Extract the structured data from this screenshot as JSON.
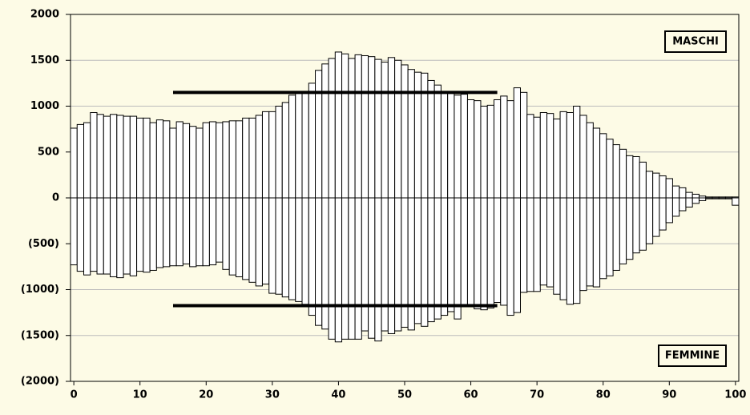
{
  "chart_data": {
    "type": "bar",
    "categories": [
      0,
      1,
      2,
      3,
      4,
      5,
      6,
      7,
      8,
      9,
      10,
      11,
      12,
      13,
      14,
      15,
      16,
      17,
      18,
      19,
      20,
      21,
      22,
      23,
      24,
      25,
      26,
      27,
      28,
      29,
      30,
      31,
      32,
      33,
      34,
      35,
      36,
      37,
      38,
      39,
      40,
      41,
      42,
      43,
      44,
      45,
      46,
      47,
      48,
      49,
      50,
      51,
      52,
      53,
      54,
      55,
      56,
      57,
      58,
      59,
      60,
      61,
      62,
      63,
      64,
      65,
      66,
      67,
      68,
      69,
      70,
      71,
      72,
      73,
      74,
      75,
      76,
      77,
      78,
      79,
      80,
      81,
      82,
      83,
      84,
      85,
      86,
      87,
      88,
      89,
      90,
      91,
      92,
      93,
      94,
      95,
      96,
      97,
      98,
      99,
      100
    ],
    "series": [
      {
        "name": "MASCHI",
        "color": "#ffffff",
        "values": [
          760,
          800,
          820,
          930,
          910,
          890,
          910,
          900,
          890,
          890,
          870,
          870,
          820,
          850,
          840,
          760,
          830,
          810,
          780,
          760,
          820,
          830,
          820,
          830,
          840,
          840,
          870,
          870,
          900,
          940,
          940,
          1000,
          1040,
          1120,
          1150,
          1160,
          1250,
          1390,
          1460,
          1520,
          1590,
          1570,
          1520,
          1560,
          1550,
          1540,
          1510,
          1480,
          1530,
          1500,
          1450,
          1400,
          1370,
          1360,
          1280,
          1230,
          1160,
          1150,
          1120,
          1130,
          1070,
          1060,
          1000,
          1010,
          1070,
          1110,
          1060,
          1200,
          1150,
          910,
          880,
          930,
          920,
          860,
          940,
          930,
          1000,
          900,
          820,
          760,
          700,
          640,
          580,
          530,
          460,
          450,
          390,
          290,
          270,
          240,
          210,
          130,
          110,
          60,
          40,
          20,
          10,
          10,
          10,
          10,
          10
        ]
      },
      {
        "name": "FEMMINE",
        "color": "#ffffff",
        "values": [
          -730,
          -800,
          -840,
          -800,
          -830,
          -830,
          -860,
          -870,
          -830,
          -850,
          -800,
          -810,
          -790,
          -760,
          -750,
          -740,
          -740,
          -720,
          -750,
          -740,
          -740,
          -730,
          -700,
          -780,
          -840,
          -860,
          -890,
          -920,
          -960,
          -940,
          -1040,
          -1050,
          -1080,
          -1110,
          -1130,
          -1160,
          -1280,
          -1390,
          -1430,
          -1540,
          -1570,
          -1540,
          -1540,
          -1540,
          -1450,
          -1530,
          -1560,
          -1450,
          -1480,
          -1450,
          -1410,
          -1440,
          -1370,
          -1400,
          -1350,
          -1320,
          -1280,
          -1240,
          -1320,
          -1180,
          -1180,
          -1210,
          -1220,
          -1200,
          -1140,
          -1170,
          -1280,
          -1250,
          -1030,
          -1020,
          -1020,
          -950,
          -970,
          -1050,
          -1110,
          -1160,
          -1150,
          -1010,
          -960,
          -970,
          -880,
          -850,
          -790,
          -720,
          -670,
          -600,
          -570,
          -500,
          -420,
          -350,
          -270,
          -200,
          -140,
          -100,
          -60,
          -30,
          -10,
          -10,
          -10,
          -10,
          -80
        ]
      }
    ],
    "reference_lines": [
      {
        "value": 1150,
        "x": [
          15,
          64
        ]
      },
      {
        "value": -1175,
        "x": [
          15,
          64
        ]
      }
    ],
    "xlim": [
      -0.5,
      100.5
    ],
    "xticks": [
      0,
      10,
      20,
      30,
      40,
      50,
      60,
      70,
      80,
      90,
      100
    ],
    "ylim": [
      -2000,
      2000
    ],
    "yticks": [
      {
        "value": -2000,
        "label": "(2000)"
      },
      {
        "value": -1500,
        "label": "(1500)"
      },
      {
        "value": -1000,
        "label": "(1000)"
      },
      {
        "value": -500,
        "label": "(500)"
      },
      0,
      500,
      1000,
      1500,
      2000
    ],
    "grid": true
  }
}
